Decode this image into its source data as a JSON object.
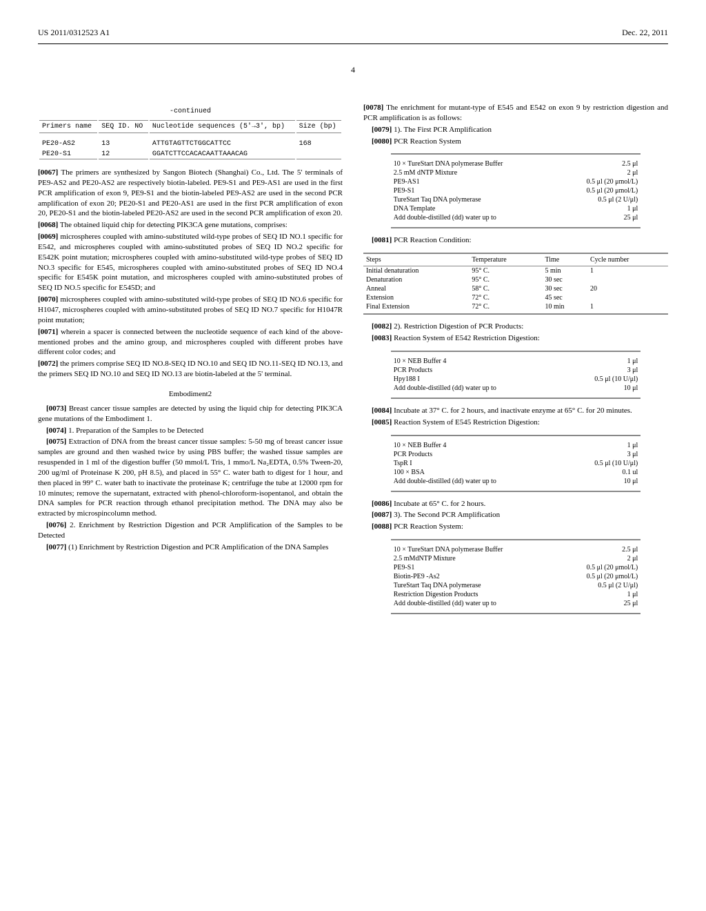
{
  "header": {
    "pub_number": "US 2011/0312523 A1",
    "date": "Dec. 22, 2011",
    "page_number": "4"
  },
  "seq_table": {
    "continued": "-continued",
    "headers": {
      "name": "Primers name",
      "seq_no": "SEQ ID. NO",
      "seq": "Nucleotide sequences (5'→3', bp)",
      "size": "Size (bp)"
    },
    "rows": [
      {
        "name": "PE20-AS2",
        "seq_no": "13",
        "seq": "ATTGTAGTTCTGGCATTCC",
        "size": "168"
      },
      {
        "name": "PE20-S1",
        "seq_no": "12",
        "seq": "GGATCTTCCACACAATTAAACAG",
        "size": ""
      }
    ]
  },
  "p0067": "The primers are synthesized by Sangon Biotech (Shanghai) Co., Ltd. The 5' terminals of PE9-AS2 and PE20-AS2 are respectively biotin-labeled. PE9-S1 and PE9-AS1 are used in the first PCR amplification of exon 9, PE9-S1 and the biotin-labeled PE9-AS2 are used in the second PCR amplification of exon 20; PE20-S1 and PE20-AS1 are used in the first PCR amplification of exon 20, PE20-S1 and the biotin-labeled PE20-AS2 are used in the second PCR amplification of exon 20.",
  "p0068": "The obtained liquid chip for detecting PIK3CA gene mutations, comprises:",
  "p0069": "microspheres coupled with amino-substituted wild-type probes of SEQ ID NO.1 specific for E542, and microspheres coupled with amino-substituted probes of SEQ ID NO.2 specific for E542K point mutation; microspheres coupled with amino-substituted wild-type probes of SEQ ID NO.3 specific for E545, microspheres coupled with amino-substituted probes of SEQ ID NO.4 specific for E545K point mutation, and microspheres coupled with amino-substituted probes of SEQ ID NO.5 specific for E545D; and",
  "p0070": "microspheres coupled with amino-substituted wild-type probes of SEQ ID NO.6 specific for H1047, microspheres coupled with amino-substituted probes of SEQ ID NO.7 specific for H1047R point mutation;",
  "p0071": "wherein a spacer is connected between the nucleotide sequence of each kind of the above-mentioned probes and the amino group, and microspheres coupled with different probes have different color codes; and",
  "p0072": "the primers comprise SEQ ID NO.8-SEQ ID NO.10 and SEQ ID NO.11-SEQ ID NO.13, and the primers SEQ ID NO.10 and SEQ ID NO.13 are biotin-labeled at the 5' terminal.",
  "embodiment2": "Embodiment2",
  "p0073": "Breast cancer tissue samples are detected by using the liquid chip for detecting PIK3CA gene mutations of the Embodiment 1.",
  "p0074": "1. Preparation of the Samples to be Detected",
  "p0075": "Extraction of DNA from the breast cancer tissue samples: 5-50 mg of breast cancer issue samples are ground and then washed twice by using PBS buffer; the washed tissue samples are resuspended in 1 ml of the digestion buffer (50 mmol/L Tris, 1 mmo/L Na₂EDTA, 0.5% Tween-20, 200 ug/ml of Proteinase K 200, pH 8.5), and placed in 55° C. water bath to digest for 1 hour, and then placed in 99° C. water bath to inactivate the proteinase K; centrifuge the tube at 12000 rpm for 10 minutes; remove the supernatant, extracted with phenol-chloroform-isopentanol, and obtain the DNA samples for PCR reaction through ethanol precipitation method. The DNA may also be extracted by microspincolumn method.",
  "p0076": "2. Enrichment by Restriction Digestion and PCR Amplification of the Samples to be Detected",
  "p0077": "(1) Enrichment by Restriction Digestion and PCR Amplification of the DNA Samples",
  "p0078": "The enrichment for mutant-type of E545 and E542 on exon 9 by restriction digestion and PCR amplification is as follows:",
  "p0079": "1). The First PCR Amplification",
  "p0080": "PCR Reaction System",
  "pcr1_table": [
    [
      "10 × TureStart DNA polymerase Buffer",
      "2.5 μl"
    ],
    [
      "2.5 mM dNTP Mixture",
      "2 μl"
    ],
    [
      "PE9-AS1",
      "0.5 μl (20 μmol/L)"
    ],
    [
      "PE9-S1",
      "0.5 μl (20 μmol/L)"
    ],
    [
      "TureStart Taq DNA polymerase",
      "0.5 μl (2 U/μl)"
    ],
    [
      "DNA Template",
      "1 μl"
    ],
    [
      "Add double-distilled (dd) water up to",
      "25 μl"
    ]
  ],
  "p0081": "PCR Reaction Condition:",
  "condition_table": {
    "headers": [
      "Steps",
      "Temperature",
      "Time",
      "Cycle number"
    ],
    "rows": [
      [
        "Initial denaturation",
        "95° C.",
        "5 min",
        "1"
      ],
      [
        "Denaturation",
        "95° C.",
        "30 sec",
        ""
      ],
      [
        "Anneal",
        "58° C.",
        "30 sec",
        "20"
      ],
      [
        "Extension",
        "72° C.",
        "45 sec",
        ""
      ],
      [
        "Final Extension",
        "72° C.",
        "10 min",
        "1"
      ]
    ]
  },
  "p0082": "2). Restriction Digestion of PCR Products:",
  "p0083": "Reaction System of E542 Restriction Digestion:",
  "e542_table": [
    [
      "10 × NEB Buffer 4",
      "1 μl"
    ],
    [
      "PCR Products",
      "3 μl"
    ],
    [
      "Hpy188 I",
      "0.5 μl (10 U/μl)"
    ],
    [
      "Add double-distilled (dd) water up to",
      "10 μl"
    ]
  ],
  "p0084": "Incubate at 37° C. for 2 hours, and inactivate enzyme at 65° C. for 20 minutes.",
  "p0085": "Reaction System of E545 Restriction Digestion:",
  "e545_table": [
    [
      "10 × NEB Buffer 4",
      "1 μl"
    ],
    [
      "PCR Products",
      "3 μl"
    ],
    [
      "TspR I",
      "0.5 μl (10 U/μl)"
    ],
    [
      "100 × BSA",
      "0.1 ul"
    ],
    [
      "Add double-distilled (dd) water up to",
      "10 μl"
    ]
  ],
  "p0086": "Incubate at 65° C. for 2 hours.",
  "p0087": "3). The Second PCR Amplification",
  "p0088": "PCR Reaction System:",
  "pcr2_table": [
    [
      "10 × TureStart DNA polymerase Buffer",
      "2.5 μl"
    ],
    [
      "2.5 mMdNTP Mixture",
      "2 μl"
    ],
    [
      "PE9-S1",
      "0.5 μl (20 μmol/L)"
    ],
    [
      "Biotin-PE9 -As2",
      "0.5 μl (20 μmol/L)"
    ],
    [
      "TureStart Taq DNA polymerase",
      "0.5 μl (2 U/μl)"
    ],
    [
      "Restriction Digestion Products",
      "1 μl"
    ],
    [
      "Add double-distilled (dd) water up to",
      "25 μl"
    ]
  ]
}
